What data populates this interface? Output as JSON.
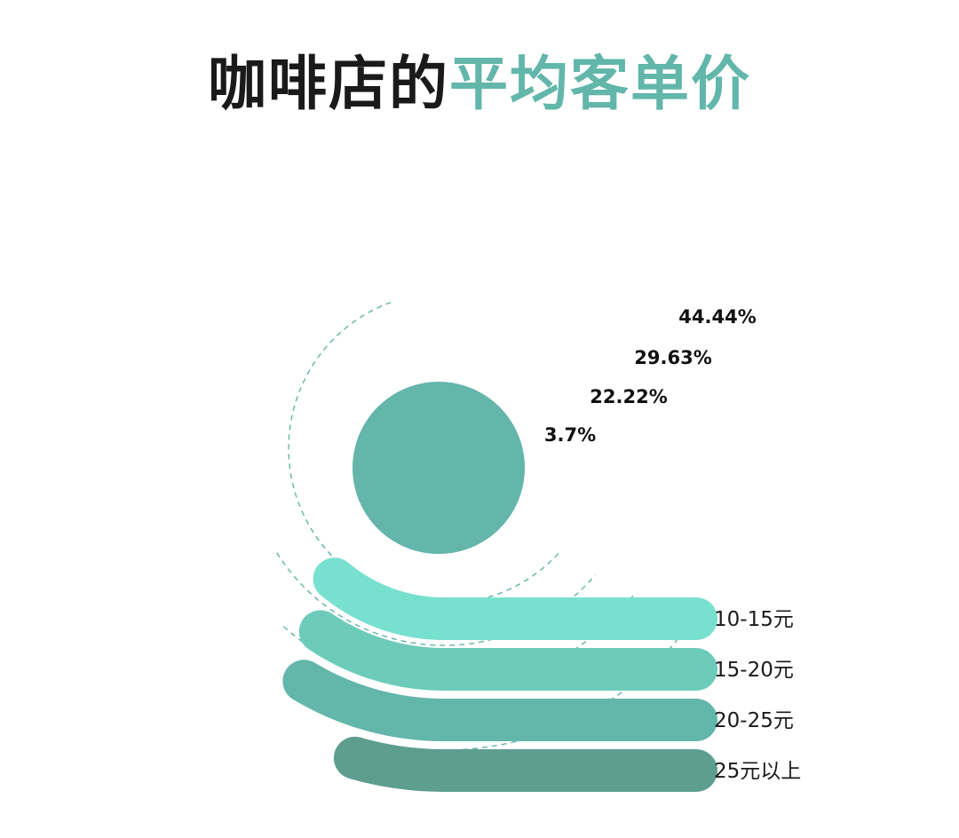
{
  "title": {
    "plain": "咖啡店的",
    "accent": "平均客单价"
  },
  "chart_data": {
    "type": "radial-bar",
    "title": "咖啡店的平均客单价",
    "categories": [
      "10-15元",
      "15-20元",
      "20-25元",
      "25元以上"
    ],
    "values": [
      3.7,
      22.22,
      29.63,
      44.44
    ],
    "value_labels": [
      "3.7%",
      "22.22%",
      "29.63%",
      "44.44%"
    ],
    "unit": "%",
    "colors": [
      "#78e0cf",
      "#6cccb9",
      "#62b6aa",
      "#5d9e8f"
    ],
    "center_circle_color": "#64b5aa",
    "guide_line_color": "#5fb4a6"
  }
}
